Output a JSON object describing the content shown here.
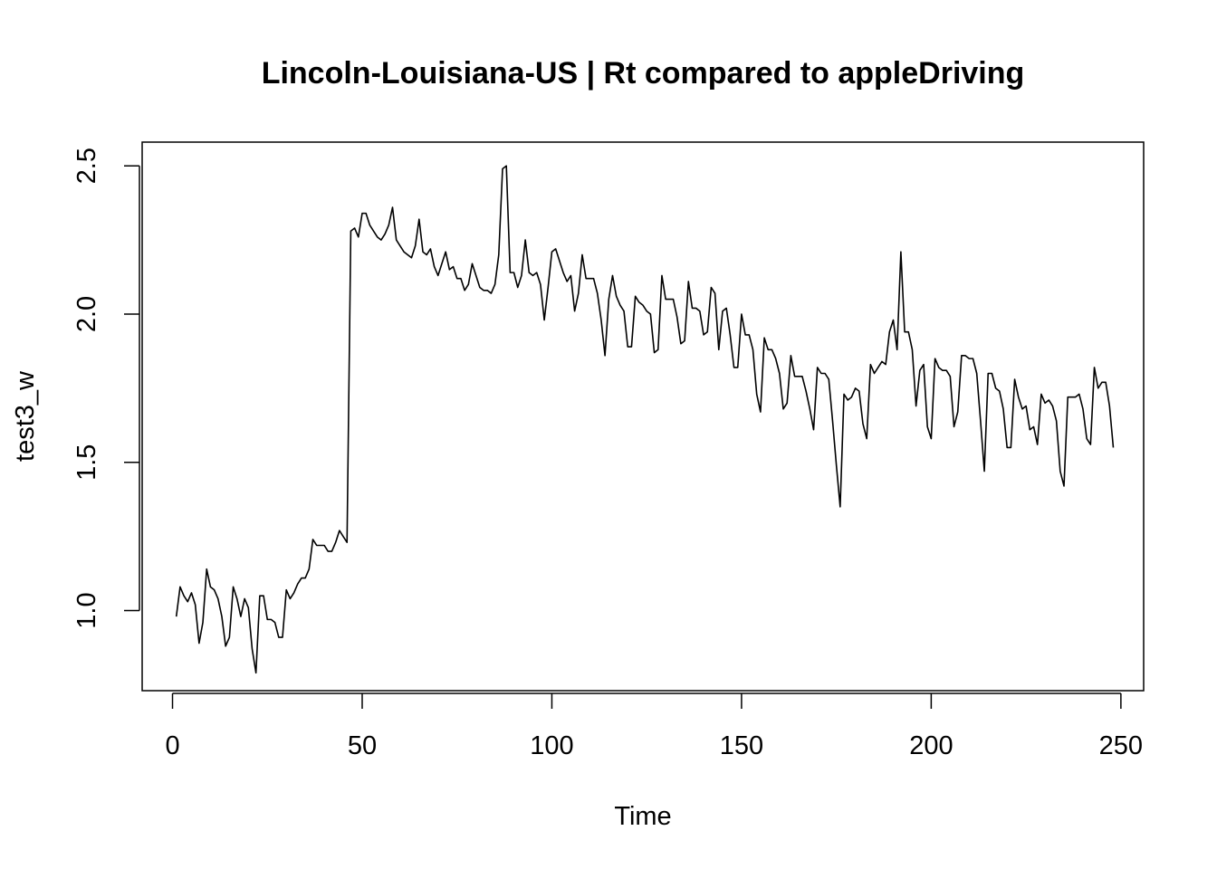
{
  "chart_data": {
    "type": "line",
    "title": "Lincoln-Louisiana-US | Rt compared to appleDriving",
    "xlabel": "Time",
    "ylabel": "test3_w",
    "xlim": [
      -8,
      256
    ],
    "ylim": [
      0.73,
      2.58
    ],
    "x_ticks": [
      0,
      50,
      100,
      150,
      200,
      250
    ],
    "y_ticks": [
      1.0,
      1.5,
      2.0,
      2.5
    ],
    "x_tick_labels": [
      "0",
      "50",
      "100",
      "150",
      "200",
      "250"
    ],
    "y_tick_labels": [
      "1.0",
      "1.5",
      "2.0",
      "2.5"
    ],
    "grid": false,
    "legend": "none",
    "line_color": "#000000",
    "series": [
      {
        "x_start": 1,
        "values": [
          0.98,
          1.08,
          1.05,
          1.03,
          1.06,
          1.02,
          0.89,
          0.96,
          1.14,
          1.08,
          1.07,
          1.04,
          0.98,
          0.88,
          0.91,
          1.08,
          1.04,
          0.98,
          1.04,
          1.01,
          0.87,
          0.79,
          1.05,
          1.05,
          0.97,
          0.97,
          0.96,
          0.91,
          0.91,
          1.07,
          1.04,
          1.06,
          1.09,
          1.11,
          1.11,
          1.14,
          1.24,
          1.22,
          1.22,
          1.22,
          1.2,
          1.2,
          1.23,
          1.27,
          1.25,
          1.23,
          2.28,
          2.29,
          2.26,
          2.34,
          2.34,
          2.3,
          2.28,
          2.26,
          2.25,
          2.27,
          2.3,
          2.36,
          2.25,
          2.23,
          2.21,
          2.2,
          2.19,
          2.23,
          2.32,
          2.21,
          2.2,
          2.22,
          2.16,
          2.13,
          2.17,
          2.21,
          2.15,
          2.16,
          2.12,
          2.12,
          2.08,
          2.1,
          2.17,
          2.13,
          2.09,
          2.08,
          2.08,
          2.07,
          2.1,
          2.2,
          2.49,
          2.5,
          2.14,
          2.14,
          2.09,
          2.13,
          2.25,
          2.14,
          2.13,
          2.14,
          2.1,
          1.98,
          2.09,
          2.21,
          2.22,
          2.18,
          2.14,
          2.11,
          2.13,
          2.01,
          2.07,
          2.2,
          2.12,
          2.12,
          2.12,
          2.07,
          1.98,
          1.86,
          2.05,
          2.13,
          2.06,
          2.03,
          2.01,
          1.89,
          1.89,
          2.06,
          2.04,
          2.03,
          2.01,
          2.0,
          1.87,
          1.88,
          2.13,
          2.05,
          2.05,
          2.05,
          1.99,
          1.9,
          1.91,
          2.11,
          2.02,
          2.02,
          2.01,
          1.93,
          1.94,
          2.09,
          2.07,
          1.88,
          2.01,
          2.02,
          1.93,
          1.82,
          1.82,
          2.0,
          1.93,
          1.93,
          1.88,
          1.73,
          1.67,
          1.92,
          1.88,
          1.88,
          1.85,
          1.8,
          1.68,
          1.7,
          1.86,
          1.79,
          1.79,
          1.79,
          1.74,
          1.68,
          1.61,
          1.82,
          1.8,
          1.8,
          1.78,
          1.64,
          1.49,
          1.35,
          1.73,
          1.71,
          1.72,
          1.75,
          1.74,
          1.63,
          1.58,
          1.83,
          1.8,
          1.82,
          1.84,
          1.83,
          1.94,
          1.98,
          1.88,
          2.21,
          1.94,
          1.94,
          1.88,
          1.69,
          1.81,
          1.83,
          1.62,
          1.58,
          1.85,
          1.82,
          1.81,
          1.81,
          1.79,
          1.62,
          1.67,
          1.86,
          1.86,
          1.85,
          1.85,
          1.8,
          1.64,
          1.47,
          1.8,
          1.8,
          1.75,
          1.74,
          1.68,
          1.55,
          1.55,
          1.78,
          1.72,
          1.68,
          1.69,
          1.61,
          1.62,
          1.56,
          1.73,
          1.7,
          1.71,
          1.69,
          1.64,
          1.47,
          1.42,
          1.72,
          1.72,
          1.72,
          1.73,
          1.68,
          1.58,
          1.56,
          1.82,
          1.75,
          1.77,
          1.77,
          1.69,
          1.55
        ]
      }
    ]
  }
}
